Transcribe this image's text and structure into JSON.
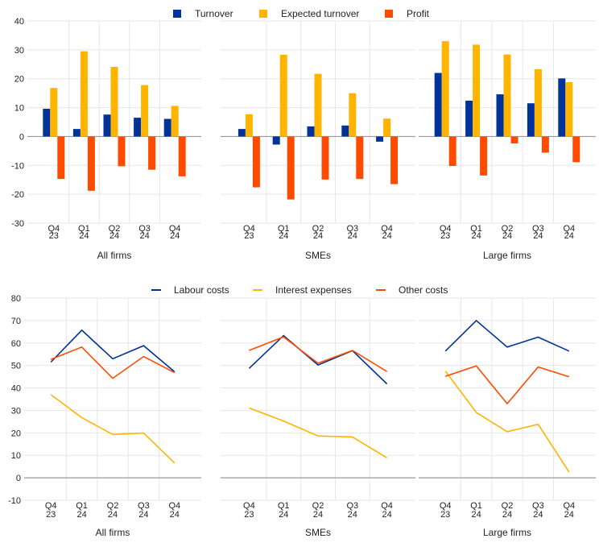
{
  "colors": {
    "turnover": "#003399",
    "expected_turnover": "#ffb400",
    "profit": "#ff4b00",
    "labour": "#003399",
    "interest": "#ffb400",
    "other": "#ff4b00",
    "grid": "#e6e6e6",
    "zero": "#9a9a9a"
  },
  "chart_data": [
    {
      "type": "bar",
      "legend_position": "top",
      "ylim": [
        -30,
        40
      ],
      "yticks": [
        -30,
        -20,
        -10,
        0,
        10,
        20,
        30,
        40
      ],
      "grid": true,
      "categories": [
        [
          "Q4",
          "23"
        ],
        [
          "Q1",
          "24"
        ],
        [
          "Q2",
          "24"
        ],
        [
          "Q3",
          "24"
        ],
        [
          "Q4",
          "24"
        ]
      ],
      "series": [
        {
          "name": "Turnover",
          "color": "#003399"
        },
        {
          "name": "Expected turnover",
          "color": "#ffb400"
        },
        {
          "name": "Profit",
          "color": "#ff4b00"
        }
      ],
      "panels": [
        {
          "title": "All firms",
          "values": [
            [
              9.6,
              2.6,
              7.6,
              6.5,
              6.1
            ],
            [
              16.8,
              29.5,
              24.1,
              17.8,
              10.6
            ],
            [
              -14.7,
              -18.8,
              -10.3,
              -11.5,
              -13.8
            ]
          ]
        },
        {
          "title": "SMEs",
          "values": [
            [
              2.6,
              -2.8,
              3.5,
              3.8,
              -1.8
            ],
            [
              7.7,
              28.3,
              21.7,
              15.0,
              6.2
            ],
            [
              -17.6,
              -21.8,
              -14.9,
              -14.7,
              -16.5
            ]
          ]
        },
        {
          "title": "Large firms",
          "values": [
            [
              22.0,
              12.4,
              14.6,
              11.5,
              20.1
            ],
            [
              33.0,
              31.8,
              28.4,
              23.3,
              18.8
            ],
            [
              -10.2,
              -13.5,
              -2.4,
              -5.6,
              -8.9
            ]
          ]
        }
      ]
    },
    {
      "type": "line",
      "legend_position": "top",
      "ylim": [
        -10,
        80
      ],
      "yticks": [
        -10,
        0,
        10,
        20,
        30,
        40,
        50,
        60,
        70,
        80
      ],
      "grid": true,
      "categories": [
        [
          "Q4",
          "23"
        ],
        [
          "Q1",
          "24"
        ],
        [
          "Q2",
          "24"
        ],
        [
          "Q3",
          "24"
        ],
        [
          "Q4",
          "24"
        ]
      ],
      "series": [
        {
          "name": "Labour costs",
          "color": "#003399"
        },
        {
          "name": "Interest expenses",
          "color": "#ffb400"
        },
        {
          "name": "Other costs",
          "color": "#ff4b00"
        }
      ],
      "panels": [
        {
          "title": "All firms",
          "values": [
            [
              51.5,
              65.7,
              53.0,
              58.8,
              47.2
            ],
            [
              37.0,
              26.8,
              19.3,
              19.9,
              6.6
            ],
            [
              52.7,
              58.2,
              44.3,
              54.0,
              46.8
            ]
          ]
        },
        {
          "title": "SMEs",
          "values": [
            [
              48.7,
              63.3,
              50.2,
              56.6,
              41.8
            ],
            [
              31.1,
              25.3,
              18.6,
              18.2,
              8.9
            ],
            [
              56.7,
              62.7,
              51.0,
              56.7,
              47.3
            ]
          ]
        },
        {
          "title": "Large firms",
          "values": [
            [
              56.4,
              70.0,
              58.2,
              62.6,
              56.4
            ],
            [
              47.5,
              29.1,
              20.5,
              23.8,
              2.6
            ],
            [
              45.2,
              49.8,
              33.0,
              49.3,
              45.0
            ]
          ]
        }
      ]
    }
  ]
}
